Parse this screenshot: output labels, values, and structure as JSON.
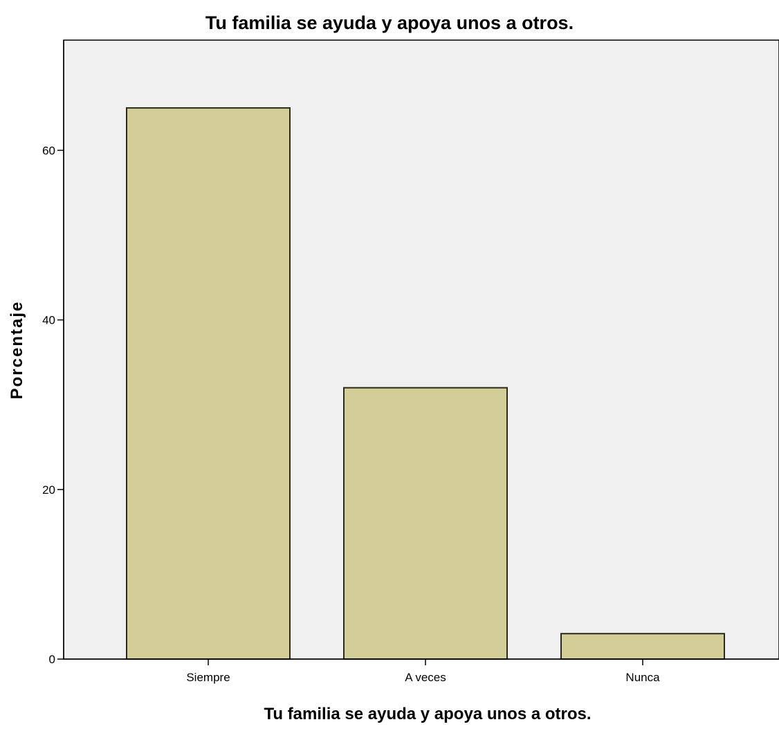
{
  "chart_data": {
    "type": "bar",
    "title": "Tu familia se ayuda y apoya unos a otros.",
    "xlabel": "Tu familia se ayuda y apoya unos a otros.",
    "ylabel": "Porcentaje",
    "categories": [
      "Siempre",
      "A veces",
      "Nunca"
    ],
    "values": [
      65,
      32,
      3
    ],
    "ylim": [
      0,
      73
    ],
    "yticks": [
      0,
      20,
      40,
      60
    ],
    "ytick_labels": [
      "0",
      "20",
      "40",
      "60"
    ],
    "grid": false,
    "legend": "none",
    "colors": {
      "bar_fill": "#d3ce97",
      "bar_stroke": "#2a2a1a",
      "plot_background": "#f0f0f0",
      "axis": "#000000"
    }
  }
}
